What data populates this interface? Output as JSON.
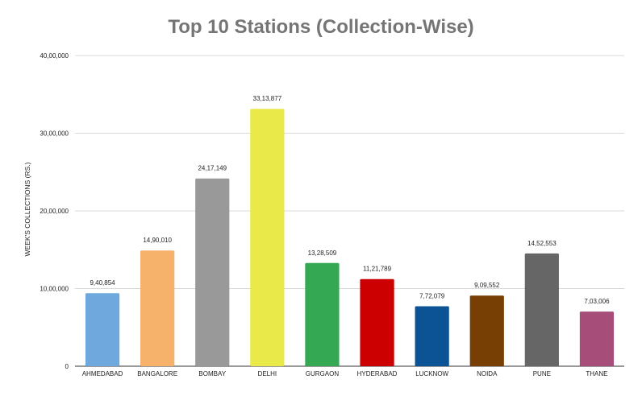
{
  "chart_data": {
    "type": "bar",
    "title": "Top 10 Stations (Collection-Wise)",
    "xlabel": "",
    "ylabel": "WEEK'S COLLECTIONS (RS.)",
    "ylim": [
      0,
      4000000
    ],
    "grid": true,
    "legend": "none",
    "yticks": [
      0,
      1000000,
      2000000,
      3000000,
      4000000
    ],
    "ytick_labels": [
      "0",
      "10,00,000",
      "20,00,000",
      "30,00,000",
      "40,00,000"
    ],
    "categories": [
      "AHMEDABAD",
      "BANGALORE",
      "BOMBAY",
      "DELHI",
      "GURGAON",
      "HYDERABAD",
      "LUCKNOW",
      "NOIDA",
      "PUNE",
      "THANE"
    ],
    "values": [
      940854,
      1490010,
      2417149,
      3313877,
      1328509,
      1121789,
      772079,
      909552,
      1452553,
      703006
    ],
    "data_labels": [
      "9,40,854",
      "14,90,010",
      "24,17,149",
      "33,13,877",
      "13,28,509",
      "11,21,789",
      "7,72,079",
      "9,09,552",
      "14,52,553",
      "7,03,006"
    ],
    "colors": [
      "#6fa8dc",
      "#f6b26b",
      "#999999",
      "#eae94a",
      "#34a853",
      "#cc0000",
      "#0b5394",
      "#783f04",
      "#666666",
      "#a64d79"
    ]
  }
}
